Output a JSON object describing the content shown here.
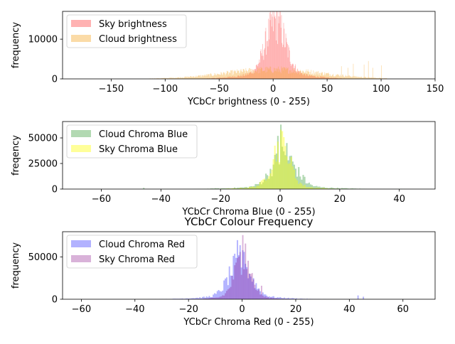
{
  "figure": {
    "title": "YCbCr Colour Frequency"
  },
  "chart_data": [
    {
      "type": "histogram",
      "xlabel": "YCbCr brightness (0 - 255)",
      "ylabel": "frequency",
      "xlim": [
        -195,
        150
      ],
      "ylim": [
        0,
        17000
      ],
      "xticks": [
        -150,
        -100,
        -50,
        0,
        50,
        100,
        150
      ],
      "yticks": [
        0,
        10000
      ],
      "legend_position": "upper-left",
      "series": [
        {
          "name": "Sky brightness",
          "color": "#ff0000",
          "alpha": 0.3,
          "center": 2,
          "spread": 9,
          "peak": 13000,
          "range": [
            -115,
            105
          ],
          "base_peak": 1500,
          "base_spread": 28,
          "spikes": [
            [
              -2,
              8000
            ],
            [
              1,
              10000
            ],
            [
              3,
              16800
            ],
            [
              5,
              14000
            ],
            [
              7,
              9000
            ],
            [
              -5,
              6000
            ]
          ]
        },
        {
          "name": "Cloud brightness",
          "color": "#f5a623",
          "alpha": 0.4,
          "center": 0,
          "spread": 45,
          "peak": 2300,
          "range": [
            -115,
            105
          ],
          "base_peak": 0,
          "base_spread": 1,
          "spikes": [
            [
              63,
              3200
            ],
            [
              69,
              2800
            ],
            [
              74,
              3800
            ],
            [
              84,
              3600
            ],
            [
              88,
              4500
            ],
            [
              92,
              2800
            ],
            [
              100,
              3400
            ]
          ]
        }
      ]
    },
    {
      "type": "histogram",
      "xlabel": "YCbCr Chroma Blue (0 - 255)",
      "ylabel": "freqency",
      "xlim": [
        -73,
        52
      ],
      "ylim": [
        0,
        66000
      ],
      "xticks": [
        -60,
        -40,
        -20,
        0,
        20,
        40
      ],
      "yticks": [
        0,
        25000,
        50000
      ],
      "legend_position": "upper-left",
      "series": [
        {
          "name": "Cloud Chroma Blue",
          "color": "#008000",
          "alpha": 0.3,
          "center": 1,
          "spread": 4,
          "peak": 30000,
          "range": [
            -50,
            48
          ],
          "base_peak": 2500,
          "base_spread": 13,
          "spikes": [
            [
              0,
              63000
            ],
            [
              -1,
              52000
            ],
            [
              2,
              45000
            ],
            [
              3,
              30000
            ],
            [
              4,
              25000
            ],
            [
              6,
              18000
            ],
            [
              8,
              12000
            ],
            [
              -46,
              1200
            ],
            [
              -22,
              900
            ]
          ]
        },
        {
          "name": "Sky Chroma Blue",
          "color": "#ffff00",
          "alpha": 0.4,
          "center": 0,
          "spread": 3,
          "peak": 40000,
          "range": [
            -40,
            42
          ],
          "base_peak": 3000,
          "base_spread": 9,
          "spikes": [
            [
              0,
              58000
            ],
            [
              1,
              49000
            ],
            [
              -1,
              38000
            ],
            [
              2,
              32000
            ],
            [
              -2,
              22000
            ]
          ]
        }
      ]
    },
    {
      "type": "histogram",
      "xlabel": "YCbCr Chroma Red (0 - 255)",
      "ylabel": "frequency",
      "xlim": [
        -67,
        72
      ],
      "ylim": [
        0,
        80000
      ],
      "xticks": [
        -60,
        -40,
        -20,
        0,
        20,
        40,
        60
      ],
      "yticks": [
        0,
        50000
      ],
      "legend_position": "upper-left",
      "series": [
        {
          "name": "Cloud Chroma Red",
          "color": "#0000ff",
          "alpha": 0.3,
          "center": -1,
          "spread": 4,
          "peak": 40000,
          "range": [
            -35,
            48
          ],
          "base_peak": 4000,
          "base_spread": 12,
          "spikes": [
            [
              -2,
              70000
            ],
            [
              -1,
              64000
            ],
            [
              0,
              58000
            ],
            [
              -3,
              48000
            ],
            [
              1,
              42000
            ],
            [
              43,
              4500
            ],
            [
              45,
              3000
            ]
          ]
        },
        {
          "name": "Sky Chroma Red",
          "color": "#800080",
          "alpha": 0.3,
          "center": 0,
          "spread": 3,
          "peak": 45000,
          "range": [
            -30,
            30
          ],
          "base_peak": 3500,
          "base_spread": 8,
          "spikes": [
            [
              0,
              76000
            ],
            [
              1,
              66000
            ],
            [
              -1,
              56000
            ],
            [
              2,
              44000
            ],
            [
              3,
              30000
            ],
            [
              7,
              16000
            ]
          ]
        }
      ]
    }
  ]
}
